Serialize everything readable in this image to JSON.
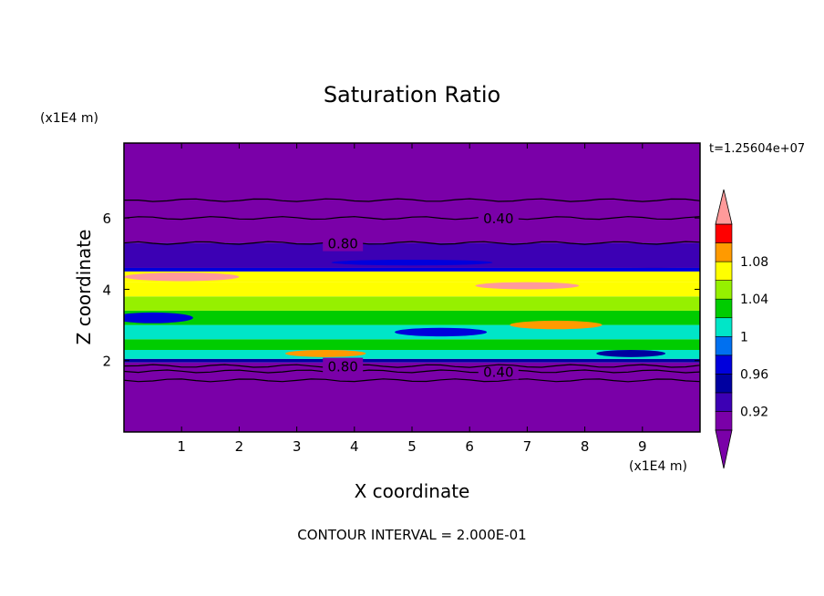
{
  "chart_data": {
    "type": "heatmap",
    "title": "Saturation Ratio",
    "xlabel": "X coordinate",
    "ylabel": "Z coordinate",
    "x_unit": "(x1E4 m)",
    "y_unit": "(x1E4 m)",
    "time_label": "t=1.25604e+07",
    "footer": "CONTOUR INTERVAL = 2.000E-01",
    "xlim": [
      0,
      10
    ],
    "ylim": [
      0,
      8.1
    ],
    "x_ticks": [
      1,
      2,
      3,
      4,
      5,
      6,
      7,
      8,
      9
    ],
    "y_ticks": [
      2,
      4,
      6
    ],
    "colorbar": {
      "labels": [
        "0.92",
        "0.96",
        "1",
        "1.04",
        "1.08"
      ],
      "levels": [
        0.9,
        0.92,
        0.94,
        0.96,
        0.98,
        1.0,
        1.02,
        1.04,
        1.06,
        1.08,
        1.1
      ],
      "colors": [
        "#7a00a8",
        "#3c00b4",
        "#0000a0",
        "#0000dc",
        "#0070f0",
        "#00e6c8",
        "#00cc00",
        "#96f000",
        "#ffff00",
        "#ff9a00",
        "#ff0000"
      ],
      "over_color": "#ff9a9a",
      "under_color": "#7a00a8"
    },
    "bands": [
      {
        "z0": 0,
        "z1": 1.95,
        "value": 0.5
      },
      {
        "z0": 1.95,
        "z1": 2.05,
        "value": 0.95
      },
      {
        "z0": 2.05,
        "z1": 2.3,
        "value": 1.0
      },
      {
        "z0": 2.3,
        "z1": 2.6,
        "value": 1.02
      },
      {
        "z0": 2.6,
        "z1": 3.0,
        "value": 1.0
      },
      {
        "z0": 3.0,
        "z1": 3.4,
        "value": 1.02
      },
      {
        "z0": 3.4,
        "z1": 3.8,
        "value": 1.05
      },
      {
        "z0": 3.8,
        "z1": 4.2,
        "value": 1.06
      },
      {
        "z0": 4.2,
        "z1": 4.5,
        "value": 1.07
      },
      {
        "z0": 4.5,
        "z1": 4.6,
        "value": 0.97
      },
      {
        "z0": 4.6,
        "z1": 5.3,
        "value": 0.93
      },
      {
        "z0": 5.3,
        "z1": 8.1,
        "value": 0.5
      }
    ],
    "patches": [
      {
        "x": 1.0,
        "z": 4.35,
        "rx": 1.0,
        "rz": 0.12,
        "value": 1.1
      },
      {
        "x": 7.0,
        "z": 4.1,
        "rx": 0.9,
        "rz": 0.1,
        "value": 1.1
      },
      {
        "x": 0.5,
        "z": 3.2,
        "rx": 0.7,
        "rz": 0.15,
        "value": 0.96
      },
      {
        "x": 7.5,
        "z": 3.0,
        "rx": 0.8,
        "rz": 0.12,
        "value": 1.08
      },
      {
        "x": 5.5,
        "z": 2.8,
        "rx": 0.8,
        "rz": 0.12,
        "value": 0.97
      },
      {
        "x": 3.5,
        "z": 2.2,
        "rx": 0.7,
        "rz": 0.1,
        "value": 1.08
      },
      {
        "x": 8.8,
        "z": 2.2,
        "rx": 0.6,
        "rz": 0.1,
        "value": 0.94
      },
      {
        "x": 5.0,
        "z": 4.75,
        "rx": 1.4,
        "rz": 0.08,
        "value": 0.96
      },
      {
        "x": 9.2,
        "z": 4.7,
        "rx": 0.8,
        "rz": 0.1,
        "value": 0.92
      }
    ],
    "contours": [
      {
        "z": 1.45,
        "label": ""
      },
      {
        "z": 1.7,
        "label": "0.40"
      },
      {
        "z": 1.85,
        "label": "0.80"
      },
      {
        "z": 6.0,
        "label": "0.40"
      },
      {
        "z": 5.3,
        "label": "0.80"
      },
      {
        "z": 6.5,
        "label": ""
      }
    ]
  }
}
